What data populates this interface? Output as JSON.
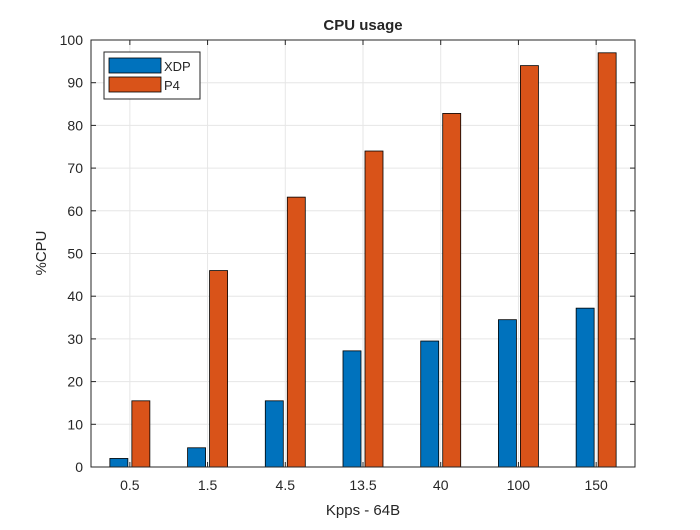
{
  "chart_data": {
    "type": "bar",
    "title": "CPU usage",
    "xlabel": "Kpps - 64B",
    "ylabel": "%CPU",
    "categories": [
      "0.5",
      "1.5",
      "4.5",
      "13.5",
      "40",
      "100",
      "150"
    ],
    "series": [
      {
        "name": "XDP",
        "color": "#0072BD",
        "values": [
          2,
          4.5,
          15.5,
          27.2,
          29.5,
          34.5,
          37.2
        ]
      },
      {
        "name": "P4",
        "color": "#D95319",
        "values": [
          15.5,
          46,
          63.2,
          74,
          82.8,
          94,
          97
        ]
      }
    ],
    "ylim": [
      0,
      100
    ],
    "yticks": [
      0,
      10,
      20,
      30,
      40,
      50,
      60,
      70,
      80,
      90,
      100
    ],
    "grid": true,
    "legend_position": "top-left"
  }
}
